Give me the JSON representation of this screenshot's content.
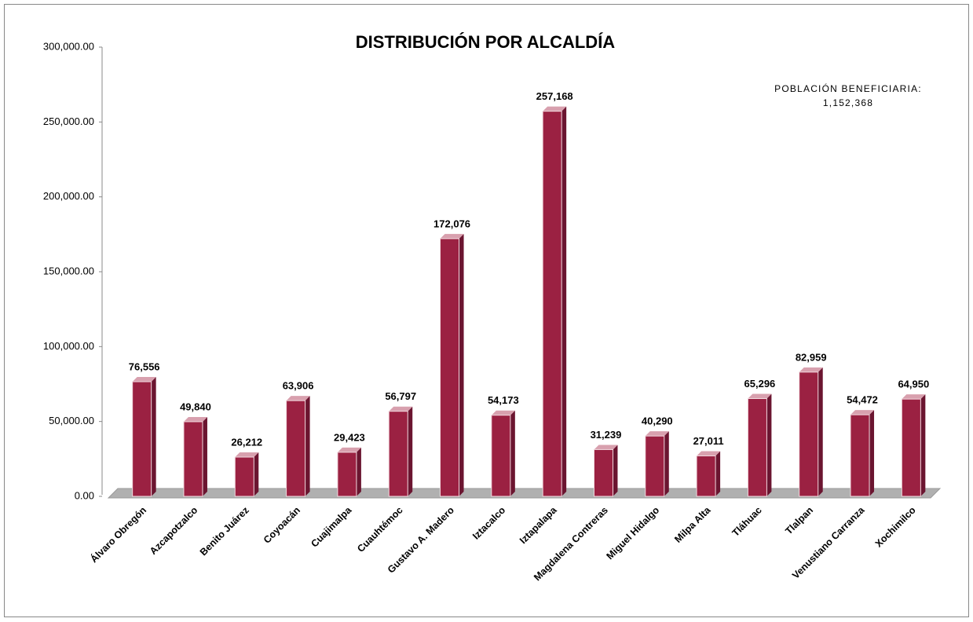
{
  "chart_data": {
    "type": "bar",
    "title": "DISTRIBUCIÓN   POR ALCALDÍA",
    "annotations": [
      "POBLACIÓN BENEFICIARIA:",
      "1,152,368"
    ],
    "categories": [
      "Álvaro Obregón",
      "Azcapotzalco",
      "Benito Juárez",
      "Coyoacán",
      "Cuajimalpa",
      "Cuauhtémoc",
      "Gustavo A. Madero",
      "Iztacalco",
      "Iztapalapa",
      "Magdalena Contreras",
      "Miguel Hidalgo",
      "Milpa Alta",
      "Tláhuac",
      "Tlalpan",
      "Venustiano Carranza",
      "Xochimilco"
    ],
    "values": [
      76556,
      49840,
      26212,
      63906,
      29423,
      56797,
      172076,
      54173,
      257168,
      31239,
      40290,
      27011,
      65296,
      82959,
      54472,
      64950
    ],
    "value_labels": [
      "76,556",
      "49,840",
      "26,212",
      "63,906",
      "29,423",
      "56,797",
      "172,076",
      "54,173",
      "257,168",
      "31,239",
      "40,290",
      "27,011",
      "65,296",
      "82,959",
      "54,472",
      "64,950"
    ],
    "color": "#9b2142",
    "ylim": [
      0,
      300000
    ],
    "yticks": [
      {
        "value": 0,
        "label": "0.00"
      },
      {
        "value": 50000,
        "label": "50,000.00"
      },
      {
        "value": 100000,
        "label": "100,000.00"
      },
      {
        "value": 150000,
        "label": "150,000.00"
      },
      {
        "value": 200000,
        "label": "200,000.00"
      },
      {
        "value": 250000,
        "label": "250,000.00"
      },
      {
        "value": 300000,
        "label": "300,000.00"
      }
    ]
  }
}
